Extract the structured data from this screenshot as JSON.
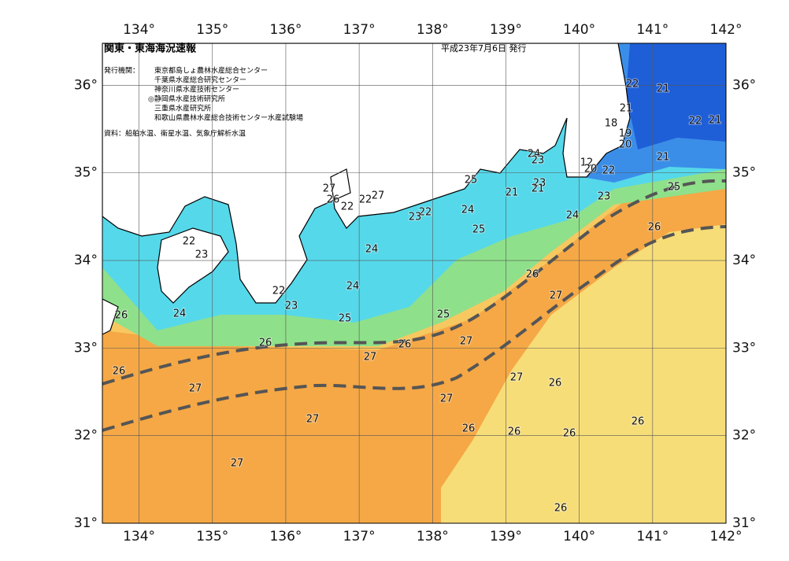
{
  "header": {
    "title": "関東・東海海況速報",
    "date": "平成23年7月6日 発行",
    "issuer_label": "発行機関：",
    "issuers": [
      "東京都島しょ農林水産総合センター",
      "千葉県水産総合研究センター",
      "神奈川県水産技術センター",
      "◎静岡県水産技術研究所",
      "三重県水産研究所",
      "和歌山県農林水産総合技術センター水産試験場"
    ],
    "source": "資料：船舶水温、衛星水温、気象庁解析水温"
  },
  "map": {
    "lon_range": [
      133.5,
      142
    ],
    "lat_range": [
      31,
      36.48
    ],
    "lon_ticks": [
      {
        "value": 134,
        "label": "134°"
      },
      {
        "value": 135,
        "label": "135°"
      },
      {
        "value": 136,
        "label": "136°"
      },
      {
        "value": 137,
        "label": "137°"
      },
      {
        "value": 138,
        "label": "138°"
      },
      {
        "value": 139,
        "label": "139°"
      },
      {
        "value": 140,
        "label": "140°"
      },
      {
        "value": 141,
        "label": "141°"
      },
      {
        "value": 142,
        "label": "142°"
      }
    ],
    "lat_ticks": [
      {
        "value": 31,
        "label": "31°"
      },
      {
        "value": 32,
        "label": "32°"
      },
      {
        "value": 33,
        "label": "33°"
      },
      {
        "value": 34,
        "label": "34°"
      },
      {
        "value": 35,
        "label": "35°"
      },
      {
        "value": 36,
        "label": "36°"
      }
    ],
    "contour_labels": [
      22,
      21,
      21,
      18,
      19,
      22,
      21,
      20,
      21,
      24,
      23,
      12,
      20,
      22,
      25,
      21,
      23,
      21,
      23,
      25,
      27,
      26,
      22,
      22,
      27,
      22,
      23,
      24,
      24,
      26,
      25,
      22,
      23,
      24,
      26,
      27,
      24,
      22,
      23,
      24,
      26,
      25,
      25,
      26,
      26,
      27,
      27,
      26,
      27,
      26,
      27,
      27,
      27,
      26,
      26,
      26,
      26,
      27,
      26
    ]
  }
}
